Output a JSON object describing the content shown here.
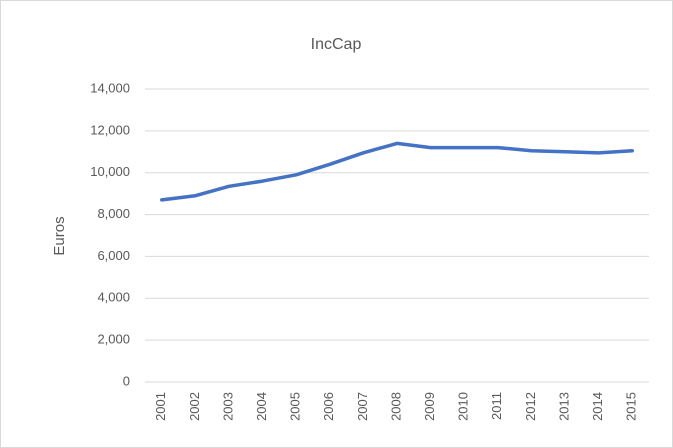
{
  "chart_data": {
    "type": "line",
    "title": "IncCap",
    "y_label": "Euros",
    "categories": [
      "2001",
      "2002",
      "2003",
      "2004",
      "2005",
      "2006",
      "2007",
      "2008",
      "2009",
      "2010",
      "2011",
      "2012",
      "2013",
      "2014",
      "2015"
    ],
    "series": [
      {
        "name": "IncCap",
        "color": "#4472c4",
        "values": [
          8700,
          8900,
          9350,
          9600,
          9900,
          10400,
          10950,
          11400,
          11200,
          11200,
          11200,
          11050,
          11000,
          10950,
          11050
        ]
      }
    ],
    "ylim": [
      0,
      14000
    ],
    "yticks": [
      0,
      {
        "value": 2000,
        "label": "2,000"
      },
      {
        "value": 4000,
        "label": "4,000"
      },
      {
        "value": 6000,
        "label": "6,000"
      },
      {
        "value": 8000,
        "label": "8,000"
      },
      {
        "value": 10000,
        "label": "10,000"
      },
      {
        "value": 12000,
        "label": "12,000"
      },
      {
        "value": 14000,
        "label": "14,000"
      }
    ],
    "grid": true
  }
}
